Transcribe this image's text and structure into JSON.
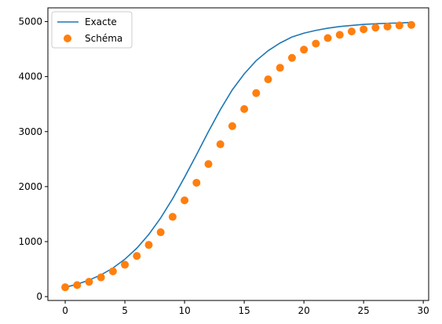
{
  "chart_data": {
    "type": "line",
    "title": "",
    "xlabel": "",
    "ylabel": "",
    "xlim": [
      -1.45,
      30.45
    ],
    "ylim": [
      -70,
      5250
    ],
    "xticks": [
      0,
      5,
      10,
      15,
      20,
      25,
      30
    ],
    "yticks": [
      0,
      1000,
      2000,
      3000,
      4000,
      5000
    ],
    "grid": false,
    "legend": "top-left",
    "x": [
      0,
      1,
      2,
      3,
      4,
      5,
      6,
      7,
      8,
      9,
      10,
      11,
      12,
      13,
      14,
      15,
      16,
      17,
      18,
      19,
      20,
      21,
      22,
      23,
      24,
      25,
      26,
      27,
      28,
      29
    ],
    "series": [
      {
        "name": "Exacte",
        "kind": "line",
        "color": "#1f77b4",
        "values": [
          170,
          225,
          300,
          395,
          520,
          680,
          880,
          1130,
          1430,
          1780,
          2170,
          2580,
          3000,
          3400,
          3760,
          4050,
          4290,
          4470,
          4610,
          4720,
          4790,
          4840,
          4880,
          4910,
          4930,
          4950,
          4960,
          4970,
          4975,
          4985
        ]
      },
      {
        "name": "Schéma",
        "kind": "scatter",
        "color": "#ff7f0e",
        "values": [
          170,
          210,
          270,
          350,
          460,
          580,
          740,
          940,
          1170,
          1450,
          1750,
          2070,
          2410,
          2770,
          3100,
          3410,
          3700,
          3950,
          4160,
          4340,
          4490,
          4600,
          4700,
          4760,
          4820,
          4860,
          4890,
          4910,
          4930,
          4940
        ]
      }
    ]
  }
}
